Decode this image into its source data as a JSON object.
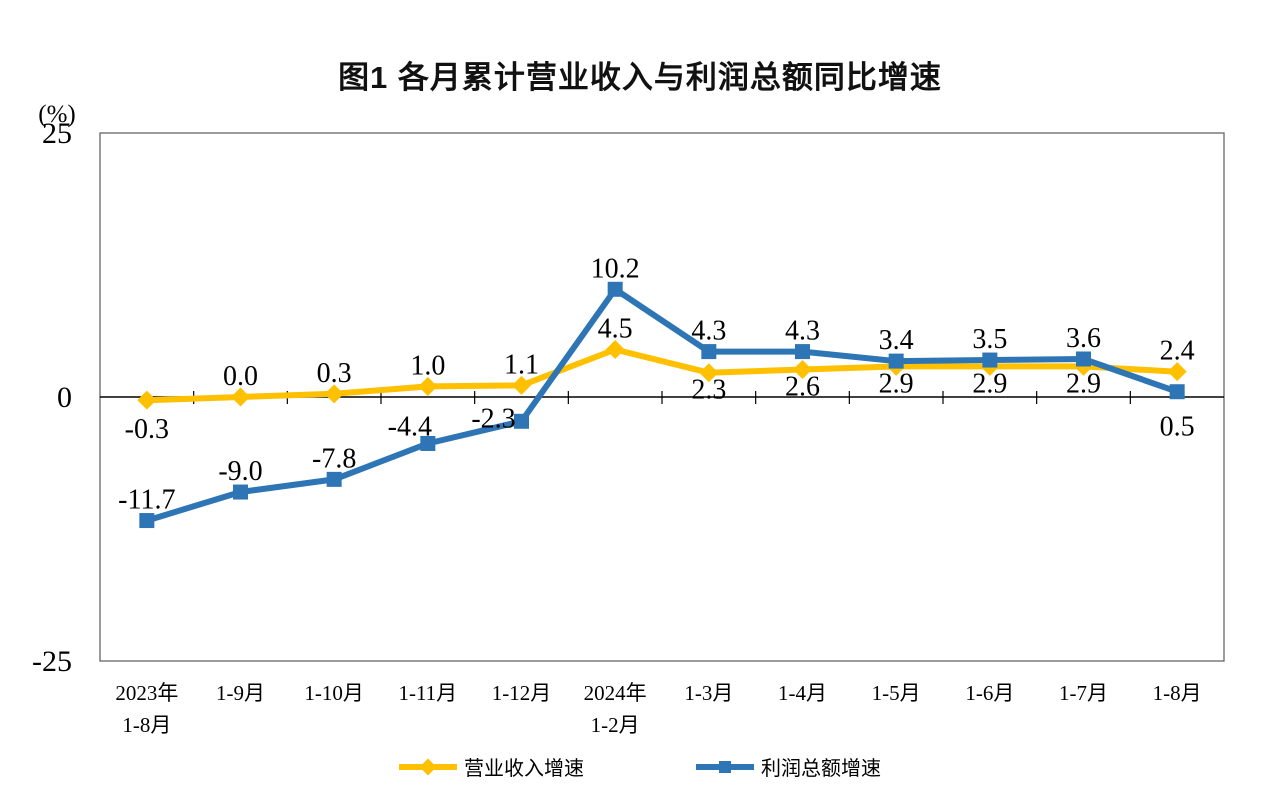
{
  "title": "图1  各月累计营业收入与利润总额同比增速",
  "y_axis": {
    "unit": "(%)"
  },
  "chart_data": {
    "type": "line",
    "title": "图1  各月累计营业收入与利润总额同比增速",
    "ylabel": "(%)",
    "ylim": [
      -25,
      25
    ],
    "yticks": [
      25,
      0,
      -25
    ],
    "grid": false,
    "legend_position": "bottom",
    "categories": [
      "2023年1-8月",
      "1-9月",
      "1-10月",
      "1-11月",
      "1-12月",
      "2024年1-2月",
      "1-3月",
      "1-4月",
      "1-5月",
      "1-6月",
      "1-7月",
      "1-8月"
    ],
    "categories_display": [
      [
        "2023年",
        "1-8月"
      ],
      [
        "1-9月"
      ],
      [
        "1-10月"
      ],
      [
        "1-11月"
      ],
      [
        "1-12月"
      ],
      [
        "2024年",
        "1-2月"
      ],
      [
        "1-3月"
      ],
      [
        "1-4月"
      ],
      [
        "1-5月"
      ],
      [
        "1-6月"
      ],
      [
        "1-7月"
      ],
      [
        "1-8月"
      ]
    ],
    "series": [
      {
        "name": "营业收入增速",
        "color": "#FFC000",
        "marker": "diamond",
        "values": [
          -0.3,
          0.0,
          0.3,
          1.0,
          1.1,
          4.5,
          2.3,
          2.6,
          2.9,
          2.9,
          2.9,
          2.4
        ],
        "labels": [
          "-0.3",
          "0.0",
          "0.3",
          "1.0",
          "1.1",
          "4.5",
          "2.3",
          "2.6",
          "2.9",
          "2.9",
          "2.9",
          "2.4"
        ],
        "label_offsets": [
          [
            0,
            38
          ],
          [
            0,
            -12
          ],
          [
            0,
            -12
          ],
          [
            0,
            -12
          ],
          [
            0,
            -12
          ],
          [
            0,
            -12
          ],
          [
            0,
            26
          ],
          [
            0,
            26
          ],
          [
            0,
            26
          ],
          [
            0,
            26
          ],
          [
            0,
            26
          ],
          [
            0,
            -12
          ]
        ]
      },
      {
        "name": "利润总额增速",
        "color": "#2E75B6",
        "marker": "square",
        "values": [
          -11.7,
          -9.0,
          -7.8,
          -4.4,
          -2.3,
          10.2,
          4.3,
          4.3,
          3.4,
          3.5,
          3.6,
          0.5
        ],
        "labels": [
          "-11.7",
          "-9.0",
          "-7.8",
          "-4.4",
          "-2.3",
          "10.2",
          "4.3",
          "4.3",
          "3.4",
          "3.5",
          "3.6",
          "0.5"
        ],
        "label_offsets": [
          [
            0,
            -12
          ],
          [
            0,
            -12
          ],
          [
            0,
            -12
          ],
          [
            -18,
            -8
          ],
          [
            -28,
            6
          ],
          [
            0,
            -12
          ],
          [
            0,
            -12
          ],
          [
            0,
            -12
          ],
          [
            0,
            -12
          ],
          [
            0,
            -12
          ],
          [
            0,
            -12
          ],
          [
            0,
            44
          ]
        ]
      }
    ]
  }
}
